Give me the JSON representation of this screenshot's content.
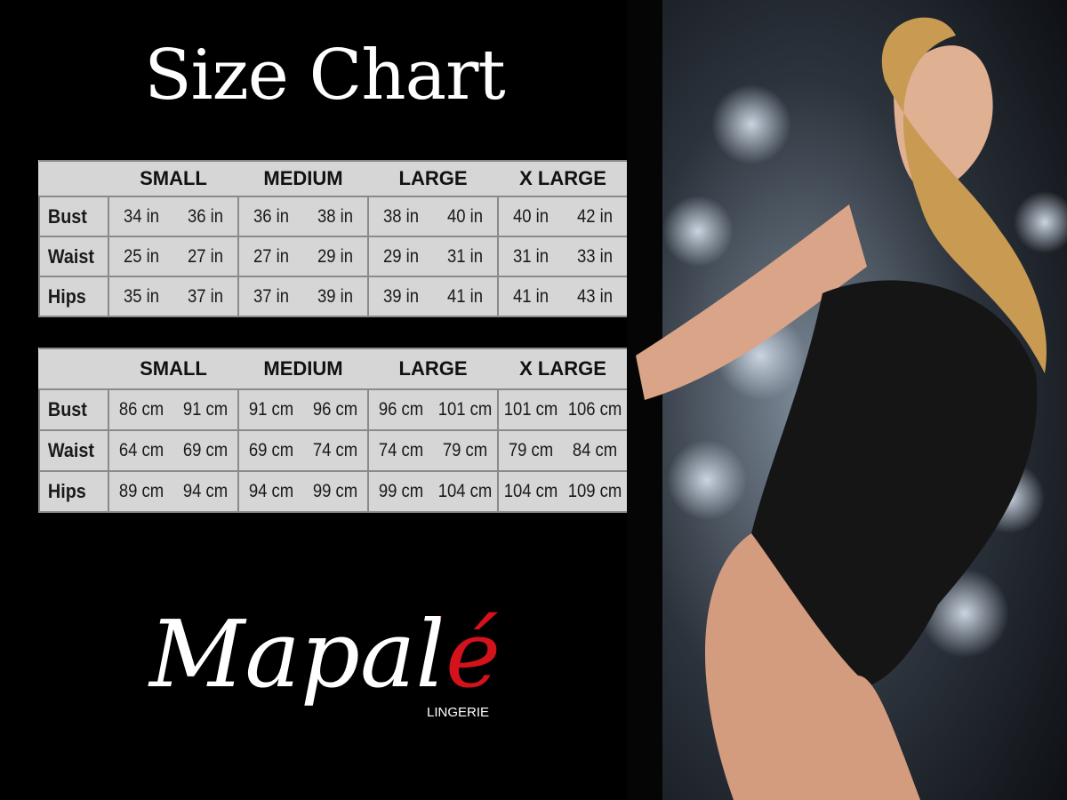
{
  "title": "Size Chart",
  "sizes": [
    "SMALL",
    "MEDIUM",
    "LARGE",
    "X LARGE"
  ],
  "inches_table": {
    "rows": [
      {
        "label": "Bust",
        "values": [
          "34 in",
          "36 in",
          "36 in",
          "38 in",
          "38 in",
          "40 in",
          "40 in",
          "42 in"
        ]
      },
      {
        "label": "Waist",
        "values": [
          "25 in",
          "27 in",
          "27 in",
          "29 in",
          "29 in",
          "31 in",
          "31 in",
          "33 in"
        ]
      },
      {
        "label": "Hips",
        "values": [
          "35 in",
          "37 in",
          "37 in",
          "39 in",
          "39 in",
          "41 in",
          "41 in",
          "43 in"
        ]
      }
    ]
  },
  "cm_table": {
    "rows": [
      {
        "label": "Bust",
        "values": [
          "86 cm",
          "91 cm",
          "91 cm",
          "96 cm",
          "96 cm",
          "101 cm",
          "101 cm",
          "106 cm"
        ]
      },
      {
        "label": "Waist",
        "values": [
          "64 cm",
          "69 cm",
          "69 cm",
          "74 cm",
          "74 cm",
          "79 cm",
          "79 cm",
          "84 cm"
        ]
      },
      {
        "label": "Hips",
        "values": [
          "89 cm",
          "94 cm",
          "94 cm",
          "99 cm",
          "99 cm",
          "104 cm",
          "104 cm",
          "109 cm"
        ]
      }
    ]
  },
  "brand": {
    "name": "Mapalé",
    "tagline": "LINGERIE",
    "accent": "#d4121b"
  }
}
